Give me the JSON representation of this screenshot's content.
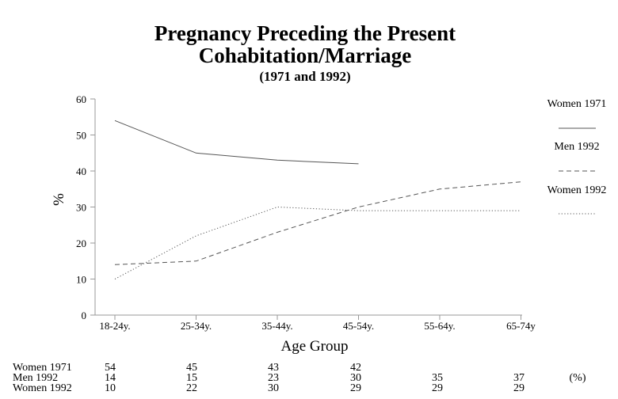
{
  "chart_data": {
    "type": "line",
    "title_line1": "Pregnancy Preceding the Present",
    "title_line2": "Cohabitation/Marriage",
    "subtitle": "(1971 and 1992)",
    "xlabel": "Age Group",
    "ylabel": "%",
    "categories": [
      "18-24y.",
      "25-34y.",
      "35-44y.",
      "45-54y.",
      "55-64y.",
      "65-74y"
    ],
    "ylim": [
      0,
      60
    ],
    "yticks": [
      0,
      10,
      20,
      30,
      40,
      50,
      60
    ],
    "grid": false,
    "legend_position": "right",
    "series": [
      {
        "name": "Women 1971",
        "values": [
          54,
          45,
          43,
          42,
          null,
          null
        ],
        "color": "#555555",
        "style": "solid"
      },
      {
        "name": "Men 1992",
        "values": [
          14,
          15,
          23,
          30,
          35,
          37
        ],
        "color": "#555555",
        "style": "dashed"
      },
      {
        "name": "Women 1992",
        "values": [
          10,
          22,
          30,
          29,
          29,
          29
        ],
        "color": "#555555",
        "style": "dotted"
      }
    ],
    "table_unit": "(%)"
  }
}
